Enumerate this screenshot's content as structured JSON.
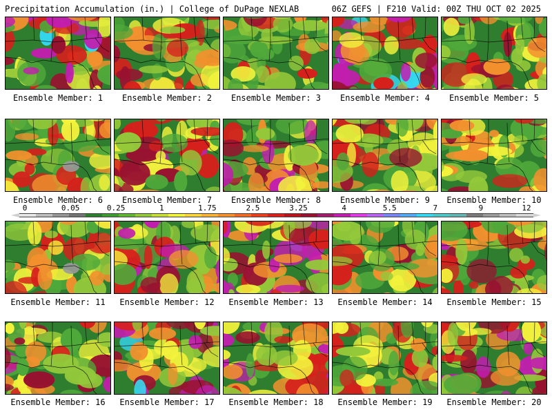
{
  "header": {
    "left_title": "Precipitation Accumulation (in.) | College of DuPage NEXLAB",
    "right_title": "06Z GEFS | F210 Valid: 00Z THU OCT 02 2025"
  },
  "colorbar": {
    "labels": [
      "0",
      "0.05",
      "0.25",
      "1",
      "1.75",
      "2.5",
      "3.25",
      "4",
      "5.5",
      "7",
      "9",
      "12"
    ],
    "colors": [
      "#e6e6e6",
      "#bdbdbd",
      "#969696",
      "#737373",
      "#2f7d2f",
      "#3f9a33",
      "#62b334",
      "#93c83a",
      "#c6dc3b",
      "#f2f23c",
      "#f8d33b",
      "#f6b238",
      "#f2902e",
      "#ed6a27",
      "#e6401f",
      "#d6201c",
      "#b8141c",
      "#981230",
      "#a01a6e",
      "#c21eae",
      "#e23ae6",
      "#b864f0",
      "#7a86f3",
      "#57a8f2",
      "#35d8f0",
      "#4cc6c6",
      "#64b4b4",
      "#7a7a7a",
      "#9a9a9a",
      "#bdbdbd",
      "#d8d8d8"
    ]
  },
  "members": [
    {
      "label": "Ensemble Member: 1",
      "hot": 0.75
    },
    {
      "label": "Ensemble Member: 2",
      "hot": 0.45
    },
    {
      "label": "Ensemble Member: 3",
      "hot": 0.35
    },
    {
      "label": "Ensemble Member: 4",
      "hot": 0.85
    },
    {
      "label": "Ensemble Member: 5",
      "hot": 0.4
    },
    {
      "label": "Ensemble Member: 6",
      "hot": 0.3
    },
    {
      "label": "Ensemble Member: 7",
      "hot": 0.6
    },
    {
      "label": "Ensemble Member: 8",
      "hot": 0.65
    },
    {
      "label": "Ensemble Member: 9",
      "hot": 0.45
    },
    {
      "label": "Ensemble Member: 10",
      "hot": 0.4
    },
    {
      "label": "Ensemble Member: 11",
      "hot": 0.25
    },
    {
      "label": "Ensemble Member: 12",
      "hot": 0.6
    },
    {
      "label": "Ensemble Member: 13",
      "hot": 0.9
    },
    {
      "label": "Ensemble Member: 14",
      "hot": 0.35
    },
    {
      "label": "Ensemble Member: 15",
      "hot": 0.5
    },
    {
      "label": "Ensemble Member: 16",
      "hot": 0.5
    },
    {
      "label": "Ensemble Member: 17",
      "hot": 0.75
    },
    {
      "label": "Ensemble Member: 18",
      "hot": 0.6
    },
    {
      "label": "Ensemble Member: 19",
      "hot": 0.45
    },
    {
      "label": "Ensemble Member: 20",
      "hot": 0.6
    }
  ],
  "palette": {
    "dark_green": "#2f7d2f",
    "green": "#4fa83a",
    "light_green": "#93c83a",
    "yellow": "#f2f23c",
    "orange": "#f2902e",
    "red": "#d6201c",
    "dark_red": "#981230",
    "magenta": "#c21eae",
    "cyan": "#35d8f0",
    "gray": "#9a9a9a",
    "border_line": "#000000"
  }
}
